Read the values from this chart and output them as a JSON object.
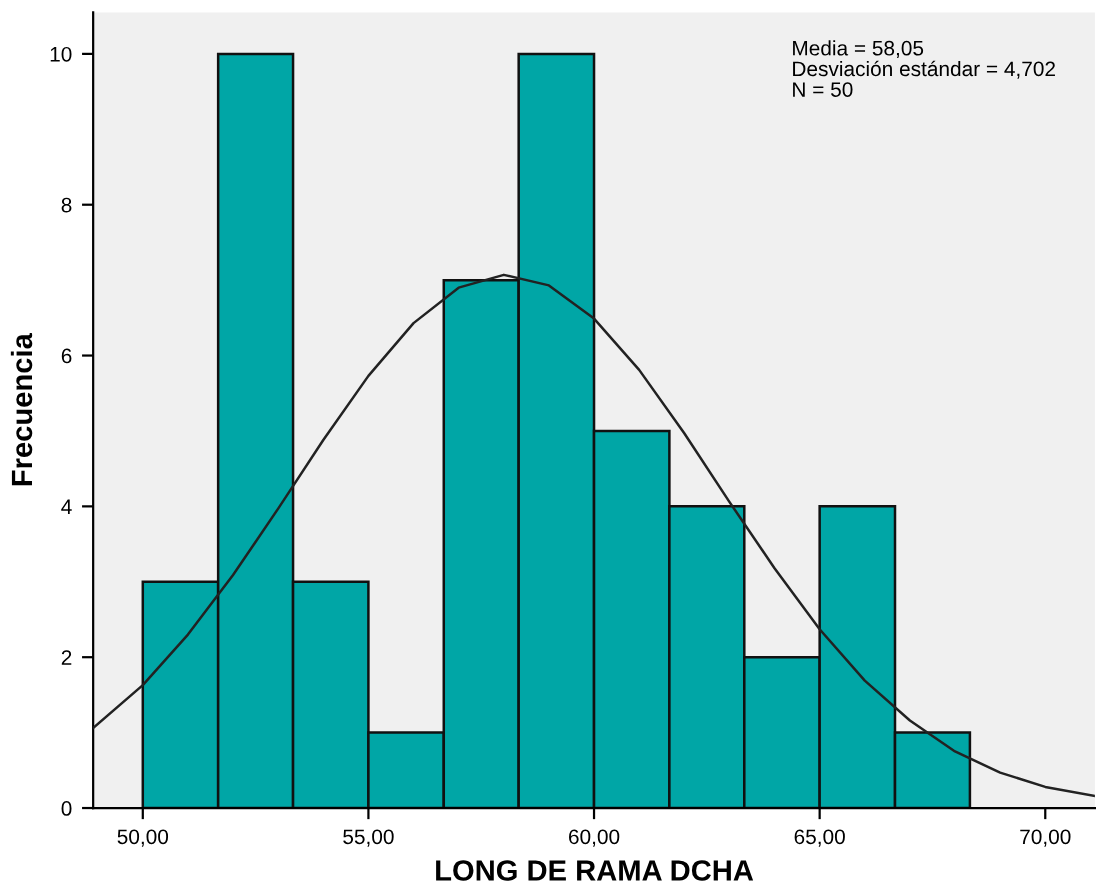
{
  "chart_data": {
    "type": "histogram",
    "xlabel": "LONG DE RAMA DCHA",
    "ylabel": "Frecuencia",
    "annotations": [
      "Media = 58,05",
      "Desviación estándar = 4,702",
      "N = 50"
    ],
    "series": [
      {
        "color": "#00a6a6",
        "bins": [
          50,
          51.67,
          53.33,
          55,
          56.67,
          58.33,
          60,
          61.67,
          63.33,
          65,
          66.67,
          68.33
        ],
        "values": [
          3,
          10,
          3,
          1,
          7,
          10,
          5,
          4,
          2,
          4,
          1
        ]
      },
      {
        "type": "line",
        "color": "#222222",
        "x": [
          48.9,
          50,
          51,
          52,
          53,
          54,
          55,
          56,
          57,
          58,
          59,
          60,
          61,
          62,
          63,
          64,
          65,
          66,
          67,
          68,
          69,
          70,
          71.1
        ],
        "values": [
          1.06,
          1.63,
          2.3,
          3.09,
          3.97,
          4.88,
          5.73,
          6.43,
          6.9,
          7.07,
          6.93,
          6.49,
          5.81,
          4.97,
          4.06,
          3.18,
          2.37,
          1.69,
          1.16,
          0.75,
          0.47,
          0.28,
          0.16
        ]
      }
    ],
    "xlim": [
      48.9,
      71.1
    ],
    "ylim": [
      0,
      10.55
    ],
    "xticks": [
      {
        "value": 50,
        "label": "50,00"
      },
      {
        "value": 55,
        "label": "55,00"
      },
      {
        "value": 60,
        "label": "60,00"
      },
      {
        "value": 65,
        "label": "65,00"
      },
      {
        "value": 70,
        "label": "70,00"
      }
    ],
    "yticks": [
      0,
      2,
      4,
      6,
      8,
      10
    ],
    "grid": false,
    "legend": false
  }
}
